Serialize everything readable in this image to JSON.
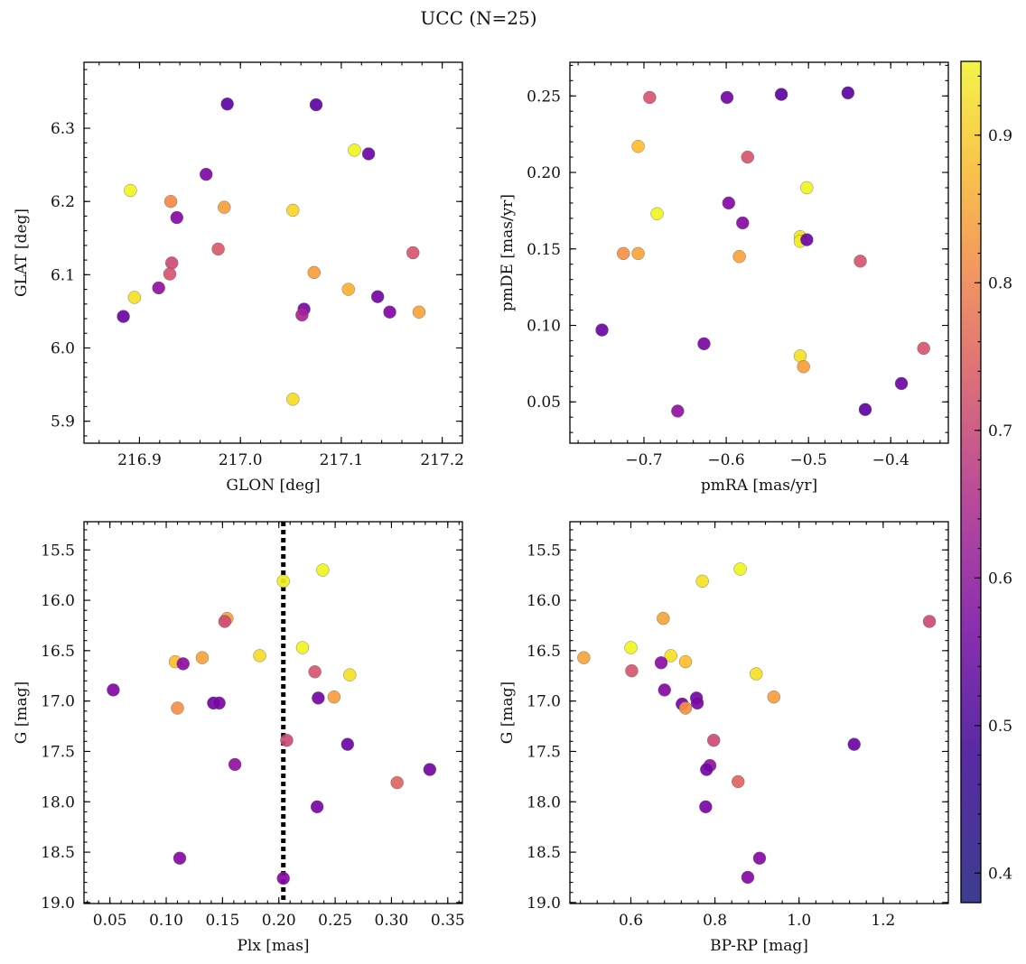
{
  "title": "UCC (N=25)",
  "colorbar": {
    "range": [
      0.38,
      0.95
    ],
    "ticks": [
      0.4,
      0.5,
      0.6,
      0.7,
      0.8,
      0.9
    ],
    "tick_labels": [
      "0.4",
      "0.5",
      "0.6",
      "0.7",
      "0.8",
      "0.9"
    ],
    "colormap": "plasma"
  },
  "chart_data": [
    {
      "type": "scatter",
      "xlabel": "GLON [deg]",
      "ylabel": "GLAT [deg]",
      "xlim": [
        216.845,
        217.22
      ],
      "ylim": [
        5.87,
        6.39
      ],
      "xticks": [
        216.9,
        217.0,
        217.1,
        217.2
      ],
      "xtick_labels": [
        "216.9",
        "217.0",
        "217.1",
        "217.2"
      ],
      "yticks": [
        5.9,
        6.0,
        6.1,
        6.2,
        6.3
      ],
      "ytick_labels": [
        "5.9",
        "6.0",
        "6.1",
        "6.2",
        "6.3"
      ],
      "points": [
        {
          "x": 216.987,
          "y": 6.333,
          "c": 0.4
        },
        {
          "x": 217.075,
          "y": 6.332,
          "c": 0.4
        },
        {
          "x": 217.113,
          "y": 6.27,
          "c": 0.93
        },
        {
          "x": 217.127,
          "y": 6.265,
          "c": 0.42
        },
        {
          "x": 216.966,
          "y": 6.237,
          "c": 0.45
        },
        {
          "x": 216.891,
          "y": 6.215,
          "c": 0.92
        },
        {
          "x": 216.931,
          "y": 6.2,
          "c": 0.72
        },
        {
          "x": 216.984,
          "y": 6.192,
          "c": 0.75
        },
        {
          "x": 217.052,
          "y": 6.188,
          "c": 0.84
        },
        {
          "x": 216.937,
          "y": 6.178,
          "c": 0.46
        },
        {
          "x": 216.978,
          "y": 6.135,
          "c": 0.63
        },
        {
          "x": 217.171,
          "y": 6.13,
          "c": 0.62
        },
        {
          "x": 216.932,
          "y": 6.116,
          "c": 0.6
        },
        {
          "x": 217.073,
          "y": 6.103,
          "c": 0.75
        },
        {
          "x": 216.93,
          "y": 6.101,
          "c": 0.62
        },
        {
          "x": 216.919,
          "y": 6.082,
          "c": 0.48
        },
        {
          "x": 217.107,
          "y": 6.08,
          "c": 0.78
        },
        {
          "x": 217.136,
          "y": 6.07,
          "c": 0.43
        },
        {
          "x": 216.895,
          "y": 6.069,
          "c": 0.86
        },
        {
          "x": 217.063,
          "y": 6.053,
          "c": 0.44
        },
        {
          "x": 217.148,
          "y": 6.049,
          "c": 0.45
        },
        {
          "x": 217.177,
          "y": 6.049,
          "c": 0.76
        },
        {
          "x": 217.061,
          "y": 6.045,
          "c": 0.52
        },
        {
          "x": 216.884,
          "y": 6.043,
          "c": 0.42
        },
        {
          "x": 217.052,
          "y": 5.93,
          "c": 0.85
        }
      ]
    },
    {
      "type": "scatter",
      "xlabel": "pmRA [mas/yr]",
      "ylabel": "pmDE [mas/yr]",
      "xlim": [
        -0.79,
        -0.33
      ],
      "ylim": [
        0.023,
        0.272
      ],
      "xticks": [
        -0.7,
        -0.6,
        -0.5,
        -0.4
      ],
      "xtick_labels": [
        "−0.7",
        "−0.6",
        "−0.5",
        "−0.4"
      ],
      "yticks": [
        0.05,
        0.1,
        0.15,
        0.2,
        0.25
      ],
      "ytick_labels": [
        "0.05",
        "0.10",
        "0.15",
        "0.20",
        "0.25"
      ],
      "points": [
        {
          "x": -0.693,
          "y": 0.249,
          "c": 0.62
        },
        {
          "x": -0.599,
          "y": 0.249,
          "c": 0.43
        },
        {
          "x": -0.533,
          "y": 0.251,
          "c": 0.4
        },
        {
          "x": -0.452,
          "y": 0.252,
          "c": 0.4
        },
        {
          "x": -0.707,
          "y": 0.217,
          "c": 0.8
        },
        {
          "x": -0.574,
          "y": 0.21,
          "c": 0.62
        },
        {
          "x": -0.502,
          "y": 0.19,
          "c": 0.93
        },
        {
          "x": -0.597,
          "y": 0.18,
          "c": 0.46
        },
        {
          "x": -0.684,
          "y": 0.173,
          "c": 0.92
        },
        {
          "x": -0.58,
          "y": 0.167,
          "c": 0.46
        },
        {
          "x": -0.51,
          "y": 0.158,
          "c": 0.86
        },
        {
          "x": -0.51,
          "y": 0.155,
          "c": 0.88
        },
        {
          "x": -0.502,
          "y": 0.156,
          "c": 0.42
        },
        {
          "x": -0.725,
          "y": 0.147,
          "c": 0.73
        },
        {
          "x": -0.707,
          "y": 0.147,
          "c": 0.76
        },
        {
          "x": -0.584,
          "y": 0.145,
          "c": 0.76
        },
        {
          "x": -0.437,
          "y": 0.142,
          "c": 0.62
        },
        {
          "x": -0.751,
          "y": 0.097,
          "c": 0.42
        },
        {
          "x": -0.627,
          "y": 0.088,
          "c": 0.44
        },
        {
          "x": -0.36,
          "y": 0.085,
          "c": 0.62
        },
        {
          "x": -0.51,
          "y": 0.08,
          "c": 0.86
        },
        {
          "x": -0.506,
          "y": 0.073,
          "c": 0.75
        },
        {
          "x": -0.387,
          "y": 0.062,
          "c": 0.42
        },
        {
          "x": -0.659,
          "y": 0.044,
          "c": 0.48
        },
        {
          "x": -0.431,
          "y": 0.045,
          "c": 0.4
        }
      ]
    },
    {
      "type": "scatter",
      "xlabel": "Plx [mas]",
      "ylabel": "G [mag]",
      "xlim": [
        0.027,
        0.363
      ],
      "ylim": [
        19.01,
        15.22
      ],
      "y_inverted": true,
      "xticks": [
        0.05,
        0.1,
        0.15,
        0.2,
        0.25,
        0.3,
        0.35
      ],
      "xtick_labels": [
        "0.05",
        "0.10",
        "0.15",
        "0.20",
        "0.25",
        "0.30",
        "0.35"
      ],
      "yticks": [
        15.5,
        16.0,
        16.5,
        17.0,
        17.5,
        18.0,
        18.5,
        19.0
      ],
      "ytick_labels": [
        "15.5",
        "16.0",
        "16.5",
        "17.0",
        "17.5",
        "18.0",
        "18.5",
        "19.0"
      ],
      "vline": {
        "x": 0.204,
        "style": "dotted"
      },
      "points": [
        {
          "x": 0.239,
          "y": 15.7,
          "c": 0.93
        },
        {
          "x": 0.204,
          "y": 15.81,
          "c": 0.88
        },
        {
          "x": 0.154,
          "y": 16.18,
          "c": 0.76
        },
        {
          "x": 0.152,
          "y": 16.21,
          "c": 0.6
        },
        {
          "x": 0.221,
          "y": 16.47,
          "c": 0.92
        },
        {
          "x": 0.183,
          "y": 16.55,
          "c": 0.85
        },
        {
          "x": 0.132,
          "y": 16.57,
          "c": 0.76
        },
        {
          "x": 0.108,
          "y": 16.61,
          "c": 0.8
        },
        {
          "x": 0.115,
          "y": 16.63,
          "c": 0.47
        },
        {
          "x": 0.232,
          "y": 16.71,
          "c": 0.62
        },
        {
          "x": 0.263,
          "y": 16.74,
          "c": 0.86
        },
        {
          "x": 0.053,
          "y": 16.89,
          "c": 0.45
        },
        {
          "x": 0.249,
          "y": 16.96,
          "c": 0.75
        },
        {
          "x": 0.235,
          "y": 16.97,
          "c": 0.43
        },
        {
          "x": 0.142,
          "y": 17.02,
          "c": 0.43
        },
        {
          "x": 0.147,
          "y": 17.02,
          "c": 0.44
        },
        {
          "x": 0.11,
          "y": 17.07,
          "c": 0.73
        },
        {
          "x": 0.207,
          "y": 17.39,
          "c": 0.6
        },
        {
          "x": 0.261,
          "y": 17.43,
          "c": 0.42
        },
        {
          "x": 0.161,
          "y": 17.63,
          "c": 0.48
        },
        {
          "x": 0.334,
          "y": 17.68,
          "c": 0.43
        },
        {
          "x": 0.305,
          "y": 17.81,
          "c": 0.65
        },
        {
          "x": 0.234,
          "y": 18.05,
          "c": 0.44
        },
        {
          "x": 0.112,
          "y": 18.56,
          "c": 0.46
        },
        {
          "x": 0.204,
          "y": 18.76,
          "c": 0.46
        }
      ]
    },
    {
      "type": "scatter",
      "xlabel": "BP-RP [mag]",
      "ylabel": "G [mag]",
      "xlim": [
        0.455,
        1.355
      ],
      "ylim": [
        19.01,
        15.22
      ],
      "y_inverted": true,
      "xticks": [
        0.6,
        0.8,
        1.0,
        1.2
      ],
      "xtick_labels": [
        "0.6",
        "0.8",
        "1.0",
        "1.2"
      ],
      "yticks": [
        15.5,
        16.0,
        16.5,
        17.0,
        17.5,
        18.0,
        18.5,
        19.0
      ],
      "ytick_labels": [
        "15.5",
        "16.0",
        "16.5",
        "17.0",
        "17.5",
        "18.0",
        "18.5",
        "19.0"
      ],
      "points": [
        {
          "x": 0.86,
          "y": 15.69,
          "c": 0.93
        },
        {
          "x": 0.77,
          "y": 15.81,
          "c": 0.86
        },
        {
          "x": 0.677,
          "y": 16.18,
          "c": 0.76
        },
        {
          "x": 1.31,
          "y": 16.21,
          "c": 0.6
        },
        {
          "x": 0.6,
          "y": 16.47,
          "c": 0.92
        },
        {
          "x": 0.695,
          "y": 16.55,
          "c": 0.86
        },
        {
          "x": 0.488,
          "y": 16.57,
          "c": 0.76
        },
        {
          "x": 0.73,
          "y": 16.61,
          "c": 0.8
        },
        {
          "x": 0.672,
          "y": 16.62,
          "c": 0.47
        },
        {
          "x": 0.602,
          "y": 16.7,
          "c": 0.62
        },
        {
          "x": 0.898,
          "y": 16.73,
          "c": 0.86
        },
        {
          "x": 0.68,
          "y": 16.89,
          "c": 0.46
        },
        {
          "x": 0.94,
          "y": 16.96,
          "c": 0.75
        },
        {
          "x": 0.756,
          "y": 16.97,
          "c": 0.43
        },
        {
          "x": 0.722,
          "y": 17.03,
          "c": 0.43
        },
        {
          "x": 0.758,
          "y": 17.02,
          "c": 0.44
        },
        {
          "x": 0.73,
          "y": 17.07,
          "c": 0.73
        },
        {
          "x": 0.797,
          "y": 17.39,
          "c": 0.6
        },
        {
          "x": 1.131,
          "y": 17.43,
          "c": 0.42
        },
        {
          "x": 0.788,
          "y": 17.64,
          "c": 0.48
        },
        {
          "x": 0.78,
          "y": 17.68,
          "c": 0.43
        },
        {
          "x": 0.855,
          "y": 17.8,
          "c": 0.65
        },
        {
          "x": 0.778,
          "y": 18.05,
          "c": 0.44
        },
        {
          "x": 0.906,
          "y": 18.56,
          "c": 0.46
        },
        {
          "x": 0.878,
          "y": 18.75,
          "c": 0.46
        }
      ]
    }
  ]
}
